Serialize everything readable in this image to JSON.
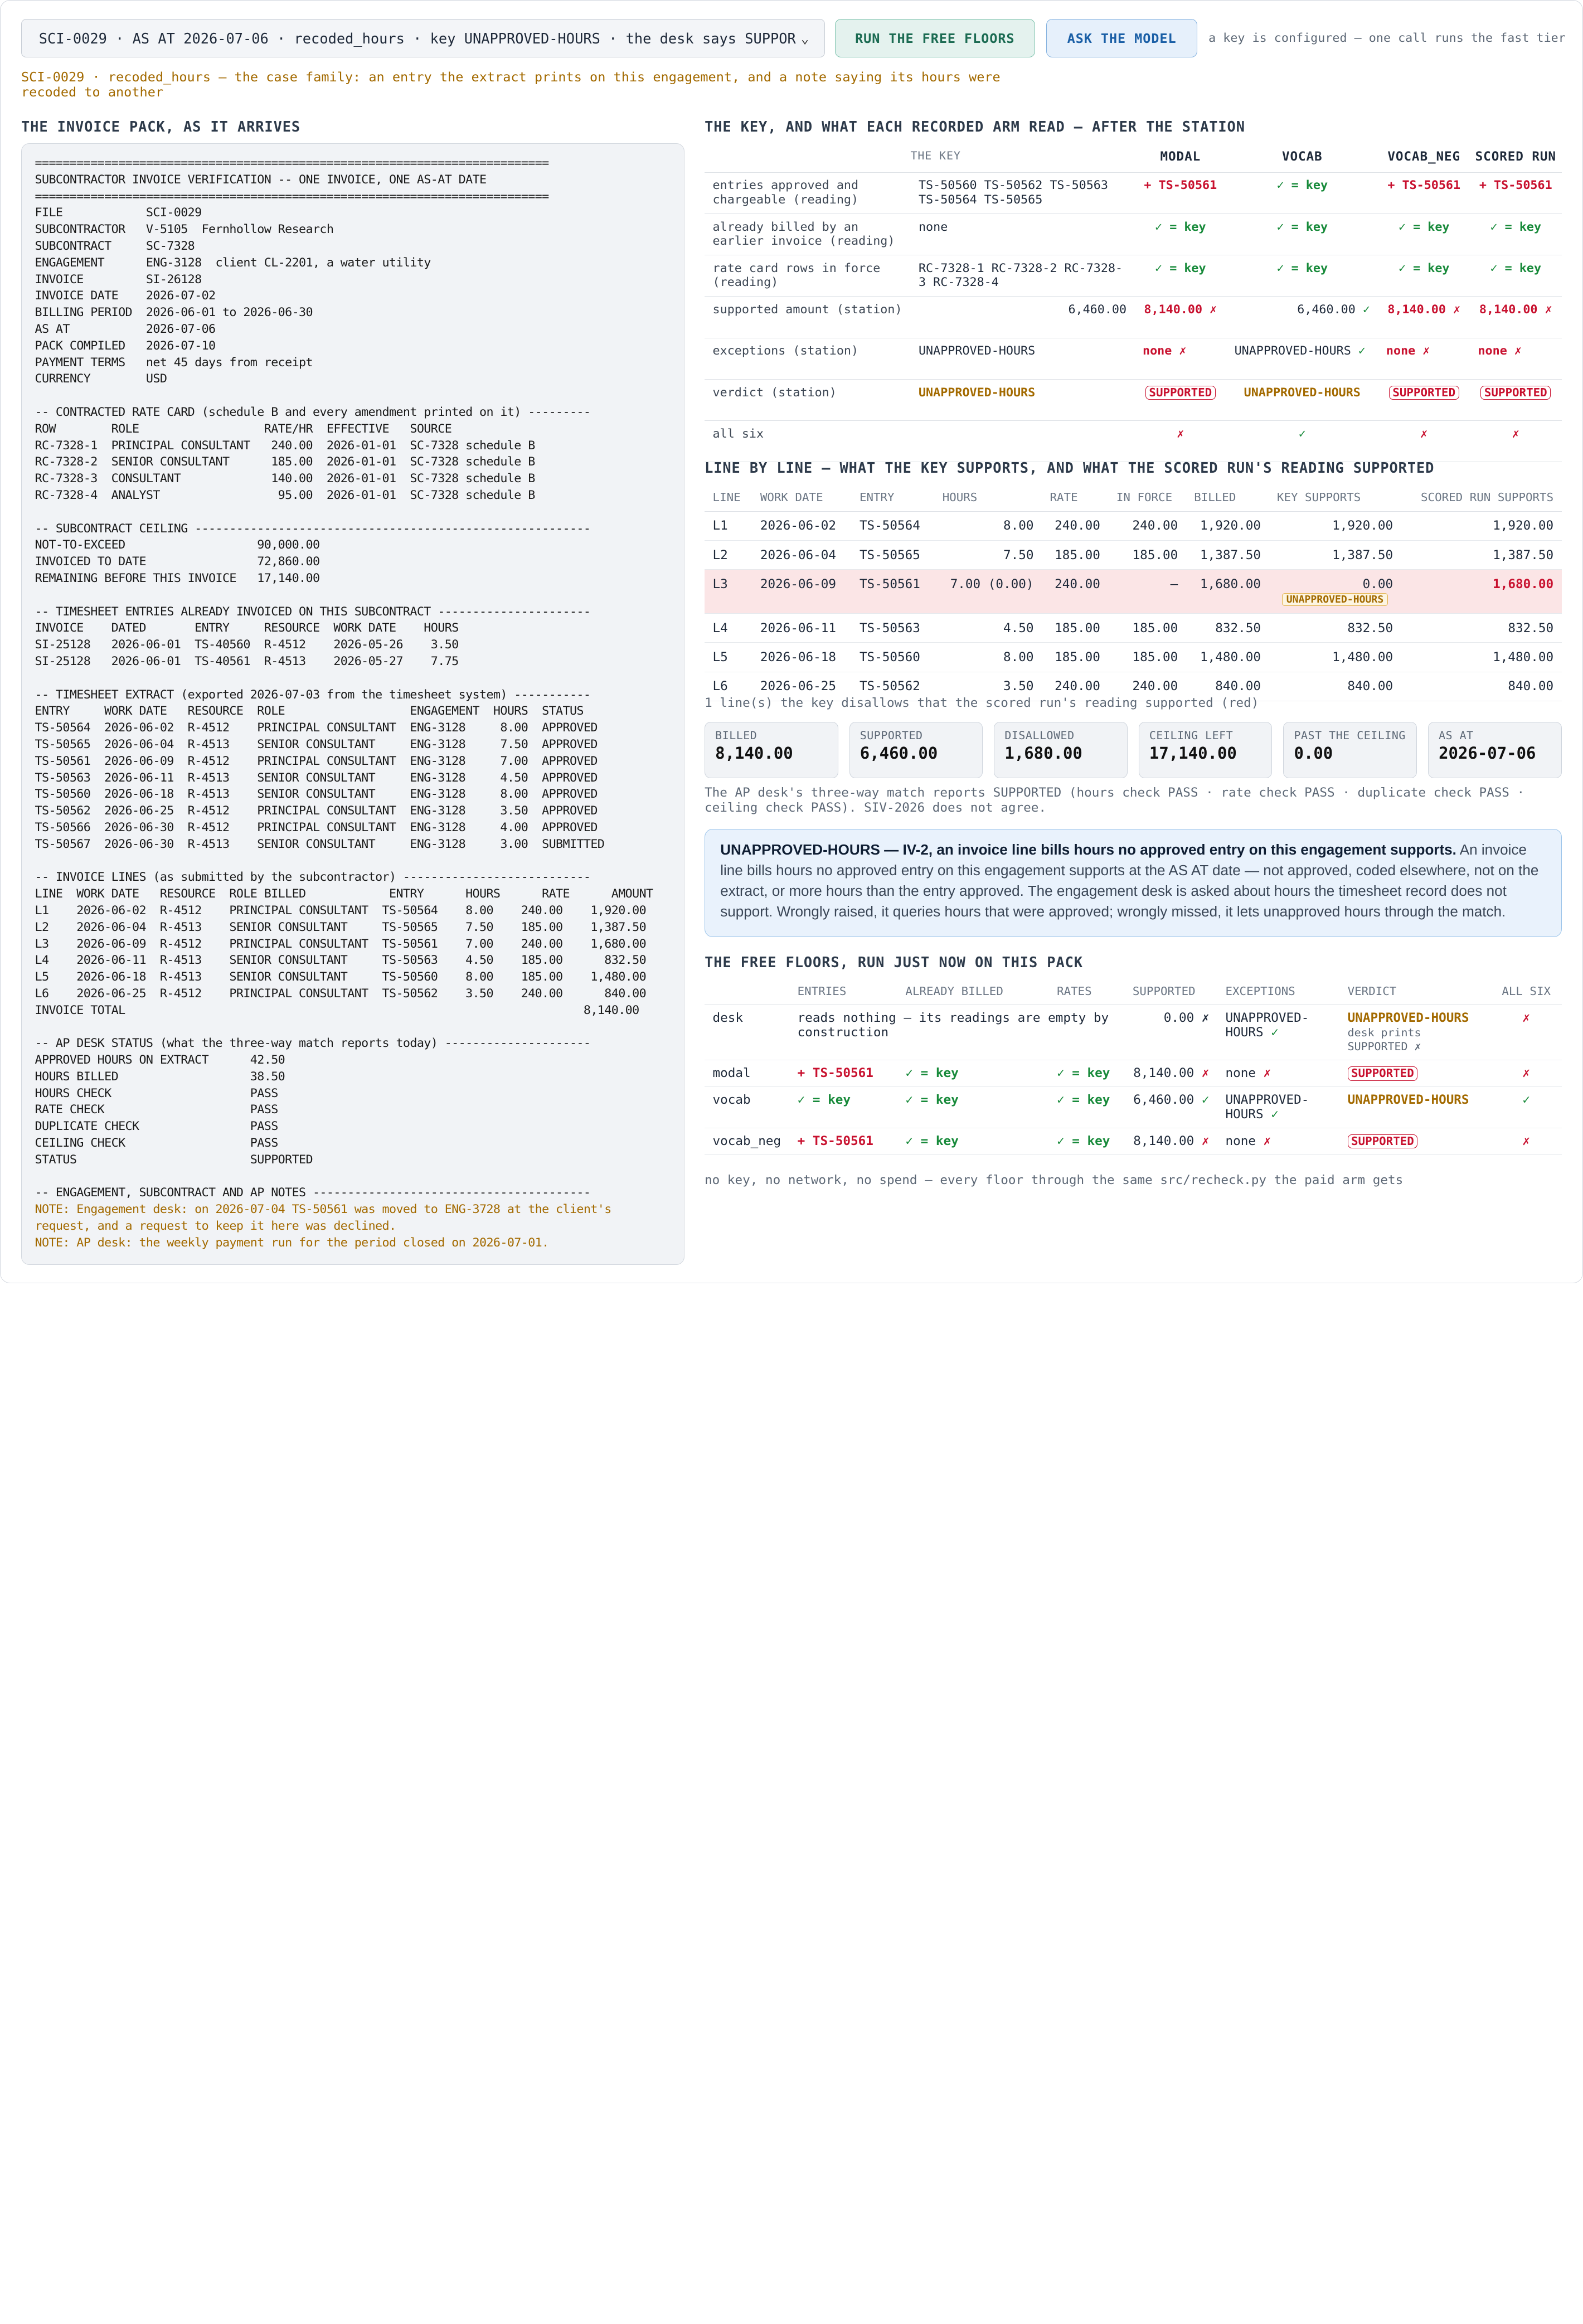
{
  "header": {
    "case_select": "SCI-0029 · AS AT 2026-07-06 · recoded_hours · key UNAPPROVED-HOURS · the desk says SUPPORTED",
    "run_floors_label": "RUN THE FREE FLOORS",
    "ask_model_label": "ASK THE MODEL",
    "hint": "a key is configured — one call runs the fast tier",
    "family_note": "SCI-0029 · recoded_hours — the case family: an entry the extract prints on this engagement, and a note saying its hours were recoded to another"
  },
  "pack": {
    "title": "THE INVOICE PACK, AS IT ARRIVES",
    "body": "==========================================================================\nSUBCONTRACTOR INVOICE VERIFICATION -- ONE INVOICE, ONE AS-AT DATE\n==========================================================================\nFILE            SCI-0029\nSUBCONTRACTOR   V-5105  Fernhollow Research\nSUBCONTRACT     SC-7328\nENGAGEMENT      ENG-3128  client CL-2201, a water utility\nINVOICE         SI-26128\nINVOICE DATE    2026-07-02\nBILLING PERIOD  2026-06-01 to 2026-06-30\nAS AT           2026-07-06\nPACK COMPILED   2026-07-10\nPAYMENT TERMS   net 45 days from receipt\nCURRENCY        USD\n\n-- CONTRACTED RATE CARD (schedule B and every amendment printed on it) ---------\nROW        ROLE                  RATE/HR  EFFECTIVE   SOURCE\nRC-7328-1  PRINCIPAL CONSULTANT   240.00  2026-01-01  SC-7328 schedule B\nRC-7328-2  SENIOR CONSULTANT      185.00  2026-01-01  SC-7328 schedule B\nRC-7328-3  CONSULTANT             140.00  2026-01-01  SC-7328 schedule B\nRC-7328-4  ANALYST                 95.00  2026-01-01  SC-7328 schedule B\n\n-- SUBCONTRACT CEILING ---------------------------------------------------------\nNOT-TO-EXCEED                   90,000.00\nINVOICED TO DATE                72,860.00\nREMAINING BEFORE THIS INVOICE   17,140.00\n\n-- TIMESHEET ENTRIES ALREADY INVOICED ON THIS SUBCONTRACT ----------------------\nINVOICE    DATED       ENTRY     RESOURCE  WORK DATE    HOURS\nSI-25128   2026-06-01  TS-40560  R-4512    2026-05-26    3.50\nSI-25128   2026-06-01  TS-40561  R-4513    2026-05-27    7.75\n\n-- TIMESHEET EXTRACT (exported 2026-07-03 from the timesheet system) -----------\nENTRY     WORK DATE   RESOURCE  ROLE                  ENGAGEMENT  HOURS  STATUS\nTS-50564  2026-06-02  R-4512    PRINCIPAL CONSULTANT  ENG-3128     8.00  APPROVED\nTS-50565  2026-06-04  R-4513    SENIOR CONSULTANT     ENG-3128     7.50  APPROVED\nTS-50561  2026-06-09  R-4512    PRINCIPAL CONSULTANT  ENG-3128     7.00  APPROVED\nTS-50563  2026-06-11  R-4513    SENIOR CONSULTANT     ENG-3128     4.50  APPROVED\nTS-50560  2026-06-18  R-4513    SENIOR CONSULTANT     ENG-3128     8.00  APPROVED\nTS-50562  2026-06-25  R-4512    PRINCIPAL CONSULTANT  ENG-3128     3.50  APPROVED\nTS-50566  2026-06-30  R-4512    PRINCIPAL CONSULTANT  ENG-3128     4.00  APPROVED\nTS-50567  2026-06-30  R-4513    SENIOR CONSULTANT     ENG-3128     3.00  SUBMITTED\n\n-- INVOICE LINES (as submitted by the subcontractor) ---------------------------\nLINE  WORK DATE   RESOURCE  ROLE BILLED            ENTRY      HOURS      RATE      AMOUNT\nL1    2026-06-02  R-4512    PRINCIPAL CONSULTANT  TS-50564    8.00    240.00    1,920.00\nL2    2026-06-04  R-4513    SENIOR CONSULTANT     TS-50565    7.50    185.00    1,387.50\nL3    2026-06-09  R-4512    PRINCIPAL CONSULTANT  TS-50561    7.00    240.00    1,680.00\nL4    2026-06-11  R-4513    SENIOR CONSULTANT     TS-50563    4.50    185.00      832.50\nL5    2026-06-18  R-4513    SENIOR CONSULTANT     TS-50560    8.00    185.00    1,480.00\nL6    2026-06-25  R-4512    PRINCIPAL CONSULTANT  TS-50562    3.50    240.00      840.00\nINVOICE TOTAL                                                                  8,140.00\n\n-- AP DESK STATUS (what the three-way match reports today) ---------------------\nAPPROVED HOURS ON EXTRACT      42.50\nHOURS BILLED                   38.50\nHOURS CHECK                    PASS\nRATE CHECK                     PASS\nDUPLICATE CHECK                PASS\nCEILING CHECK                  PASS\nSTATUS                         SUPPORTED\n\n-- ENGAGEMENT, SUBCONTRACT AND AP NOTES ----------------------------------------",
    "notes": "NOTE: Engagement desk: on 2026-07-04 TS-50561 was moved to ENG-3728 at the client's\nrequest, and a request to keep it here was declined.\nNOTE: AP desk: the weekly payment run for the period closed on 2026-07-01."
  },
  "key": {
    "title": "THE KEY, AND WHAT EACH RECORDED ARM READ — AFTER THE STATION",
    "headers": [
      "THE KEY",
      "MODAL",
      "VOCAB",
      "VOCAB_NEG",
      "SCORED RUN"
    ],
    "rows": [
      {
        "label": "entries approved and chargeable (reading)",
        "key": "TS-50560 TS-50562 TS-50563 TS-50564 TS-50565",
        "cells": [
          "+ TS-50561",
          "✓ = key",
          "+ TS-50561",
          "+ TS-50561"
        ]
      },
      {
        "label": "already billed by an earlier invoice (reading)",
        "key": "none",
        "cells": [
          "✓ = key",
          "✓ = key",
          "✓ = key",
          "✓ = key"
        ]
      },
      {
        "label": "rate card rows in force (reading)",
        "key": "RC-7328-1 RC-7328-2 RC-7328-3 RC-7328-4",
        "cells": [
          "✓ = key",
          "✓ = key",
          "✓ = key",
          "✓ = key"
        ]
      },
      {
        "label": "supported amount (station)",
        "key": "6,460.00",
        "cells": [
          "8,140.00 ✗",
          "6,460.00 ✓",
          "8,140.00 ✗",
          "8,140.00 ✗"
        ]
      },
      {
        "label": "exceptions (station)",
        "key": "UNAPPROVED-HOURS",
        "cells": [
          "none ✗",
          "UNAPPROVED-HOURS ✓",
          "none ✗",
          "none ✗"
        ]
      },
      {
        "label": "verdict (station)",
        "key": "UNAPPROVED-HOURS",
        "cells": [
          "SUPPORTED",
          "UNAPPROVED-HOURS",
          "SUPPORTED",
          "SUPPORTED"
        ]
      },
      {
        "label": "all six",
        "key": "",
        "cells": [
          "✗",
          "✓",
          "✗",
          "✗"
        ]
      }
    ]
  },
  "lines": {
    "title": "LINE BY LINE — WHAT THE KEY SUPPORTS, AND WHAT THE SCORED RUN'S READING SUPPORTED",
    "headers": [
      "LINE",
      "WORK DATE",
      "ENTRY",
      "HOURS",
      "RATE",
      "IN FORCE",
      "BILLED",
      "KEY SUPPORTS",
      "SCORED RUN SUPPORTS"
    ],
    "rows": [
      [
        "L1",
        "2026-06-02",
        "TS-50564",
        "8.00",
        "240.00",
        "240.00",
        "1,920.00",
        "1,920.00",
        "1,920.00"
      ],
      [
        "L2",
        "2026-06-04",
        "TS-50565",
        "7.50",
        "185.00",
        "185.00",
        "1,387.50",
        "1,387.50",
        "1,387.50"
      ],
      [
        "L3",
        "2026-06-09",
        "TS-50561",
        "7.00 (0.00)",
        "240.00",
        "—",
        "1,680.00",
        "0.00",
        "1,680.00"
      ],
      [
        "L4",
        "2026-06-11",
        "TS-50563",
        "4.50",
        "185.00",
        "185.00",
        "832.50",
        "832.50",
        "832.50"
      ],
      [
        "L5",
        "2026-06-18",
        "TS-50560",
        "8.00",
        "185.00",
        "185.00",
        "1,480.00",
        "1,480.00",
        "1,480.00"
      ],
      [
        "L6",
        "2026-06-25",
        "TS-50562",
        "3.50",
        "240.00",
        "240.00",
        "840.00",
        "840.00",
        "840.00"
      ]
    ],
    "l3_tag": "UNAPPROVED-HOURS",
    "footnote": "1 line(s) the key disallows that the scored run's reading supported (red)"
  },
  "cards": [
    {
      "label": "BILLED",
      "value": "8,140.00"
    },
    {
      "label": "SUPPORTED",
      "value": "6,460.00"
    },
    {
      "label": "DISALLOWED",
      "value": "1,680.00"
    },
    {
      "label": "CEILING LEFT",
      "value": "17,140.00"
    },
    {
      "label": "PAST THE CEILING",
      "value": "0.00"
    },
    {
      "label": "AS AT",
      "value": "2026-07-06"
    }
  ],
  "desk_note": "The AP desk's three-way match reports SUPPORTED (hours check PASS · rate check PASS · duplicate check PASS · ceiling check PASS). SIV-2026 does not agree.",
  "callout": {
    "title": "UNAPPROVED-HOURS — IV-2, an invoice line bills hours no approved entry on this engagement supports.",
    "body": " An invoice line bills hours no approved entry on this engagement supports at the AS AT date — not approved, coded elsewhere, not on the extract, or more hours than the entry approved. The engagement desk is asked about hours the timesheet record does not support. Wrongly raised, it queries hours that were approved; wrongly missed, it lets unapproved hours through the match."
  },
  "floors": {
    "title": "THE FREE FLOORS, RUN JUST NOW ON THIS PACK",
    "headers": [
      "",
      "ENTRIES",
      "ALREADY BILLED",
      "RATES",
      "SUPPORTED",
      "EXCEPTIONS",
      "VERDICT",
      "ALL SIX"
    ],
    "rows": [
      {
        "name": "desk",
        "entries": "reads nothing — its readings are empty by construction",
        "billed": "",
        "rates": "",
        "supported": "0.00 ✗",
        "exceptions": "UNAPPROVED-HOURS ✓",
        "verdict": "UNAPPROVED-HOURS",
        "verdict_sub": "desk prints SUPPORTED ✗",
        "all": "✗"
      },
      {
        "name": "modal",
        "entries": "+ TS-50561",
        "billed": "✓ = key",
        "rates": "✓ = key",
        "supported": "8,140.00 ✗",
        "exceptions": "none ✗",
        "verdict": "SUPPORTED",
        "verdict_sub": "",
        "all": "✗"
      },
      {
        "name": "vocab",
        "entries": "✓ = key",
        "billed": "✓ = key",
        "rates": "✓ = key",
        "supported": "6,460.00 ✓",
        "exceptions": "UNAPPROVED-HOURS ✓",
        "verdict": "UNAPPROVED-HOURS",
        "verdict_sub": "",
        "all": "✓"
      },
      {
        "name": "vocab_neg",
        "entries": "+ TS-50561",
        "billed": "✓ = key",
        "rates": "✓ = key",
        "supported": "8,140.00 ✗",
        "exceptions": "none ✗",
        "verdict": "SUPPORTED",
        "verdict_sub": "",
        "all": "✗"
      }
    ],
    "footnote": "no key, no network, no spend — every floor through the same src/recheck.py the paid arm gets"
  }
}
